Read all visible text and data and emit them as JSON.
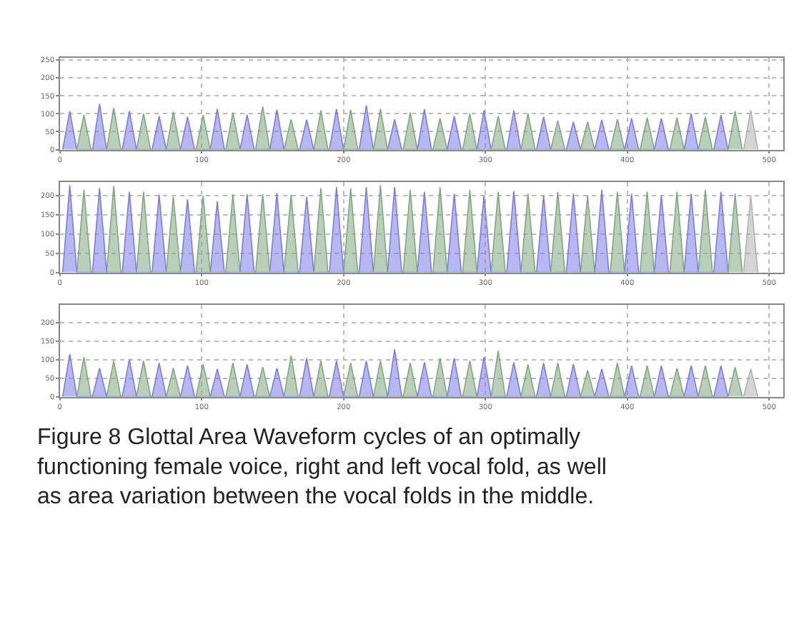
{
  "chart_data": [
    {
      "type": "area",
      "xlim": [
        0,
        510
      ],
      "xticks": [
        0,
        100,
        200,
        300,
        400,
        500
      ],
      "ylim": [
        0,
        255
      ],
      "yticks": [
        0,
        50,
        100,
        150,
        200,
        250
      ],
      "grid": true,
      "marker": "none",
      "series": [
        {
          "color": "#7b7be8",
          "x": [
            2,
            7,
            12,
            23,
            28,
            33,
            44,
            49,
            54,
            65,
            70,
            75,
            85,
            90,
            95,
            106,
            111,
            116,
            127,
            132,
            137,
            148,
            153,
            158,
            169,
            174,
            179,
            190,
            195,
            200,
            211,
            216,
            221,
            231,
            236,
            241,
            252,
            257,
            262,
            273,
            278,
            283,
            294,
            299,
            304,
            315,
            320,
            325,
            336,
            341,
            346,
            357,
            362,
            367,
            377,
            382,
            387,
            398,
            403,
            408,
            419,
            424,
            429,
            440,
            445,
            450,
            461,
            466,
            471
          ],
          "values": [
            0,
            107,
            0,
            0,
            127,
            0,
            0,
            107,
            0,
            0,
            93,
            0,
            0,
            91,
            0,
            0,
            113,
            0,
            0,
            97,
            0,
            0,
            111,
            0,
            0,
            83,
            0,
            0,
            113,
            0,
            0,
            123,
            0,
            0,
            84,
            0,
            0,
            113,
            0,
            0,
            93,
            0,
            0,
            109,
            0,
            0,
            109,
            0,
            0,
            91,
            0,
            0,
            77,
            0,
            0,
            83,
            0,
            0,
            87,
            0,
            0,
            87,
            0,
            0,
            100,
            0,
            0,
            96,
            0
          ]
        },
        {
          "color": "#7fa87f",
          "x": [
            12,
            17,
            22,
            33,
            38,
            43,
            54,
            59,
            64,
            75,
            80,
            85,
            96,
            101,
            106,
            117,
            122,
            127,
            138,
            143,
            148,
            158,
            163,
            168,
            179,
            184,
            189,
            200,
            205,
            210,
            221,
            226,
            231,
            242,
            247,
            252,
            263,
            268,
            273,
            284,
            289,
            294,
            304,
            309,
            314,
            325,
            330,
            335,
            346,
            351,
            356,
            367,
            372,
            377,
            388,
            393,
            398,
            409,
            414,
            419,
            430,
            435,
            440,
            450,
            455,
            460,
            471,
            476,
            481
          ],
          "values": [
            0,
            96,
            0,
            0,
            116,
            0,
            0,
            100,
            0,
            0,
            105,
            0,
            0,
            96,
            0,
            0,
            103,
            0,
            0,
            120,
            0,
            0,
            84,
            0,
            0,
            109,
            0,
            0,
            111,
            0,
            0,
            113,
            0,
            0,
            103,
            0,
            0,
            87,
            0,
            0,
            100,
            0,
            0,
            93,
            0,
            0,
            100,
            0,
            0,
            80,
            0,
            0,
            77,
            0,
            0,
            84,
            0,
            0,
            89,
            0,
            0,
            89,
            0,
            0,
            91,
            0,
            0,
            107,
            0
          ]
        },
        {
          "color": "#b0b0b0",
          "x": [
            482,
            487,
            492
          ],
          "values": [
            0,
            109,
            0
          ]
        }
      ]
    },
    {
      "type": "area",
      "xlim": [
        0,
        510
      ],
      "xticks": [
        0,
        100,
        200,
        300,
        400,
        500
      ],
      "ylim": [
        0,
        235
      ],
      "yticks": [
        0,
        50,
        100,
        150,
        200
      ],
      "grid": true,
      "marker": "none",
      "series": [
        {
          "color": "#7b7be8",
          "x": [
            2,
            7,
            12,
            23,
            28,
            33,
            44,
            49,
            54,
            65,
            70,
            75,
            85,
            90,
            95,
            106,
            111,
            116,
            127,
            132,
            137,
            148,
            153,
            158,
            169,
            174,
            179,
            190,
            195,
            200,
            211,
            216,
            221,
            231,
            236,
            241,
            252,
            257,
            262,
            273,
            278,
            283,
            294,
            299,
            304,
            315,
            320,
            325,
            336,
            341,
            346,
            357,
            362,
            367,
            377,
            382,
            387,
            398,
            403,
            408,
            419,
            424,
            429,
            440,
            445,
            450,
            461,
            466,
            471
          ],
          "values": [
            0,
            227,
            0,
            0,
            219,
            0,
            0,
            210,
            0,
            0,
            202,
            0,
            0,
            190,
            0,
            0,
            185,
            0,
            0,
            204,
            0,
            0,
            206,
            0,
            0,
            197,
            0,
            0,
            222,
            0,
            0,
            222,
            0,
            0,
            222,
            0,
            0,
            210,
            0,
            0,
            205,
            0,
            0,
            200,
            0,
            0,
            212,
            0,
            0,
            200,
            0,
            0,
            205,
            0,
            0,
            215,
            0,
            0,
            205,
            0,
            0,
            200,
            0,
            0,
            205,
            0,
            0,
            210,
            0
          ]
        },
        {
          "color": "#7fa87f",
          "x": [
            12,
            17,
            22,
            33,
            38,
            43,
            54,
            59,
            64,
            75,
            80,
            85,
            96,
            101,
            106,
            117,
            122,
            127,
            138,
            143,
            148,
            158,
            163,
            168,
            179,
            184,
            189,
            200,
            205,
            210,
            221,
            226,
            231,
            242,
            247,
            252,
            263,
            268,
            273,
            284,
            289,
            294,
            304,
            309,
            314,
            325,
            330,
            335,
            346,
            351,
            356,
            367,
            372,
            377,
            388,
            393,
            398,
            409,
            414,
            419,
            430,
            435,
            440,
            450,
            455,
            460,
            471,
            476,
            481
          ],
          "values": [
            0,
            215,
            0,
            0,
            225,
            0,
            0,
            210,
            0,
            0,
            197,
            0,
            0,
            200,
            0,
            0,
            204,
            0,
            0,
            204,
            0,
            0,
            202,
            0,
            0,
            219,
            0,
            0,
            219,
            0,
            0,
            227,
            0,
            0,
            215,
            0,
            0,
            222,
            0,
            0,
            215,
            0,
            0,
            210,
            0,
            0,
            205,
            0,
            0,
            210,
            0,
            0,
            200,
            0,
            0,
            210,
            0,
            0,
            210,
            0,
            0,
            210,
            0,
            0,
            215,
            0,
            0,
            205,
            0
          ]
        },
        {
          "color": "#b0b0b0",
          "x": [
            482,
            487,
            492
          ],
          "values": [
            0,
            200,
            0
          ]
        }
      ]
    },
    {
      "type": "area",
      "xlim": [
        0,
        510
      ],
      "xticks": [
        0,
        100,
        200,
        300,
        400,
        500
      ],
      "ylim": [
        0,
        248
      ],
      "yticks": [
        0,
        50,
        100,
        150,
        200
      ],
      "grid": true,
      "marker": "none",
      "series": [
        {
          "color": "#7b7be8",
          "x": [
            2,
            7,
            12,
            23,
            28,
            33,
            44,
            49,
            54,
            65,
            70,
            75,
            85,
            90,
            95,
            106,
            111,
            116,
            127,
            132,
            137,
            148,
            153,
            158,
            169,
            174,
            179,
            190,
            195,
            200,
            211,
            216,
            221,
            231,
            236,
            241,
            252,
            257,
            262,
            273,
            278,
            283,
            294,
            299,
            304,
            315,
            320,
            325,
            336,
            341,
            346,
            357,
            362,
            367,
            377,
            382,
            387,
            398,
            403,
            408,
            419,
            424,
            429,
            440,
            445,
            450,
            461,
            466,
            471
          ],
          "values": [
            0,
            115,
            0,
            0,
            77,
            0,
            0,
            101,
            0,
            0,
            91,
            0,
            0,
            84,
            0,
            0,
            75,
            0,
            0,
            87,
            0,
            0,
            77,
            0,
            0,
            104,
            0,
            0,
            97,
            0,
            0,
            97,
            0,
            0,
            128,
            0,
            0,
            93,
            0,
            0,
            104,
            0,
            0,
            107,
            0,
            0,
            93,
            0,
            0,
            91,
            0,
            0,
            88,
            0,
            0,
            75,
            0,
            0,
            84,
            0,
            0,
            84,
            0,
            0,
            84,
            0,
            0,
            84,
            0
          ]
        },
        {
          "color": "#7fa87f",
          "x": [
            12,
            17,
            22,
            33,
            38,
            43,
            54,
            59,
            64,
            75,
            80,
            85,
            96,
            101,
            106,
            117,
            122,
            127,
            138,
            143,
            148,
            158,
            163,
            168,
            179,
            184,
            189,
            200,
            205,
            210,
            221,
            226,
            231,
            242,
            247,
            252,
            263,
            268,
            273,
            284,
            289,
            294,
            304,
            309,
            314,
            325,
            330,
            335,
            346,
            351,
            356,
            367,
            372,
            377,
            388,
            393,
            398,
            409,
            414,
            419,
            430,
            435,
            440,
            450,
            455,
            460,
            471,
            476,
            481
          ],
          "values": [
            0,
            107,
            0,
            0,
            97,
            0,
            0,
            97,
            0,
            0,
            77,
            0,
            0,
            88,
            0,
            0,
            91,
            0,
            0,
            80,
            0,
            0,
            111,
            0,
            0,
            97,
            0,
            0,
            91,
            0,
            0,
            97,
            0,
            0,
            91,
            0,
            0,
            104,
            0,
            0,
            97,
            0,
            0,
            124,
            0,
            0,
            87,
            0,
            0,
            91,
            0,
            0,
            71,
            0,
            0,
            91,
            0,
            0,
            84,
            0,
            0,
            77,
            0,
            0,
            84,
            0,
            0,
            80,
            0
          ]
        },
        {
          "color": "#b0b0b0",
          "x": [
            482,
            487,
            492
          ],
          "values": [
            0,
            75,
            0
          ]
        }
      ],
      "annotations": [
        "Figure 8 Glottal Area Waveform cycles of an optimally functioning female voice, right and left vocal fold, as well as area variation between the vocal folds in the middle."
      ]
    }
  ]
}
